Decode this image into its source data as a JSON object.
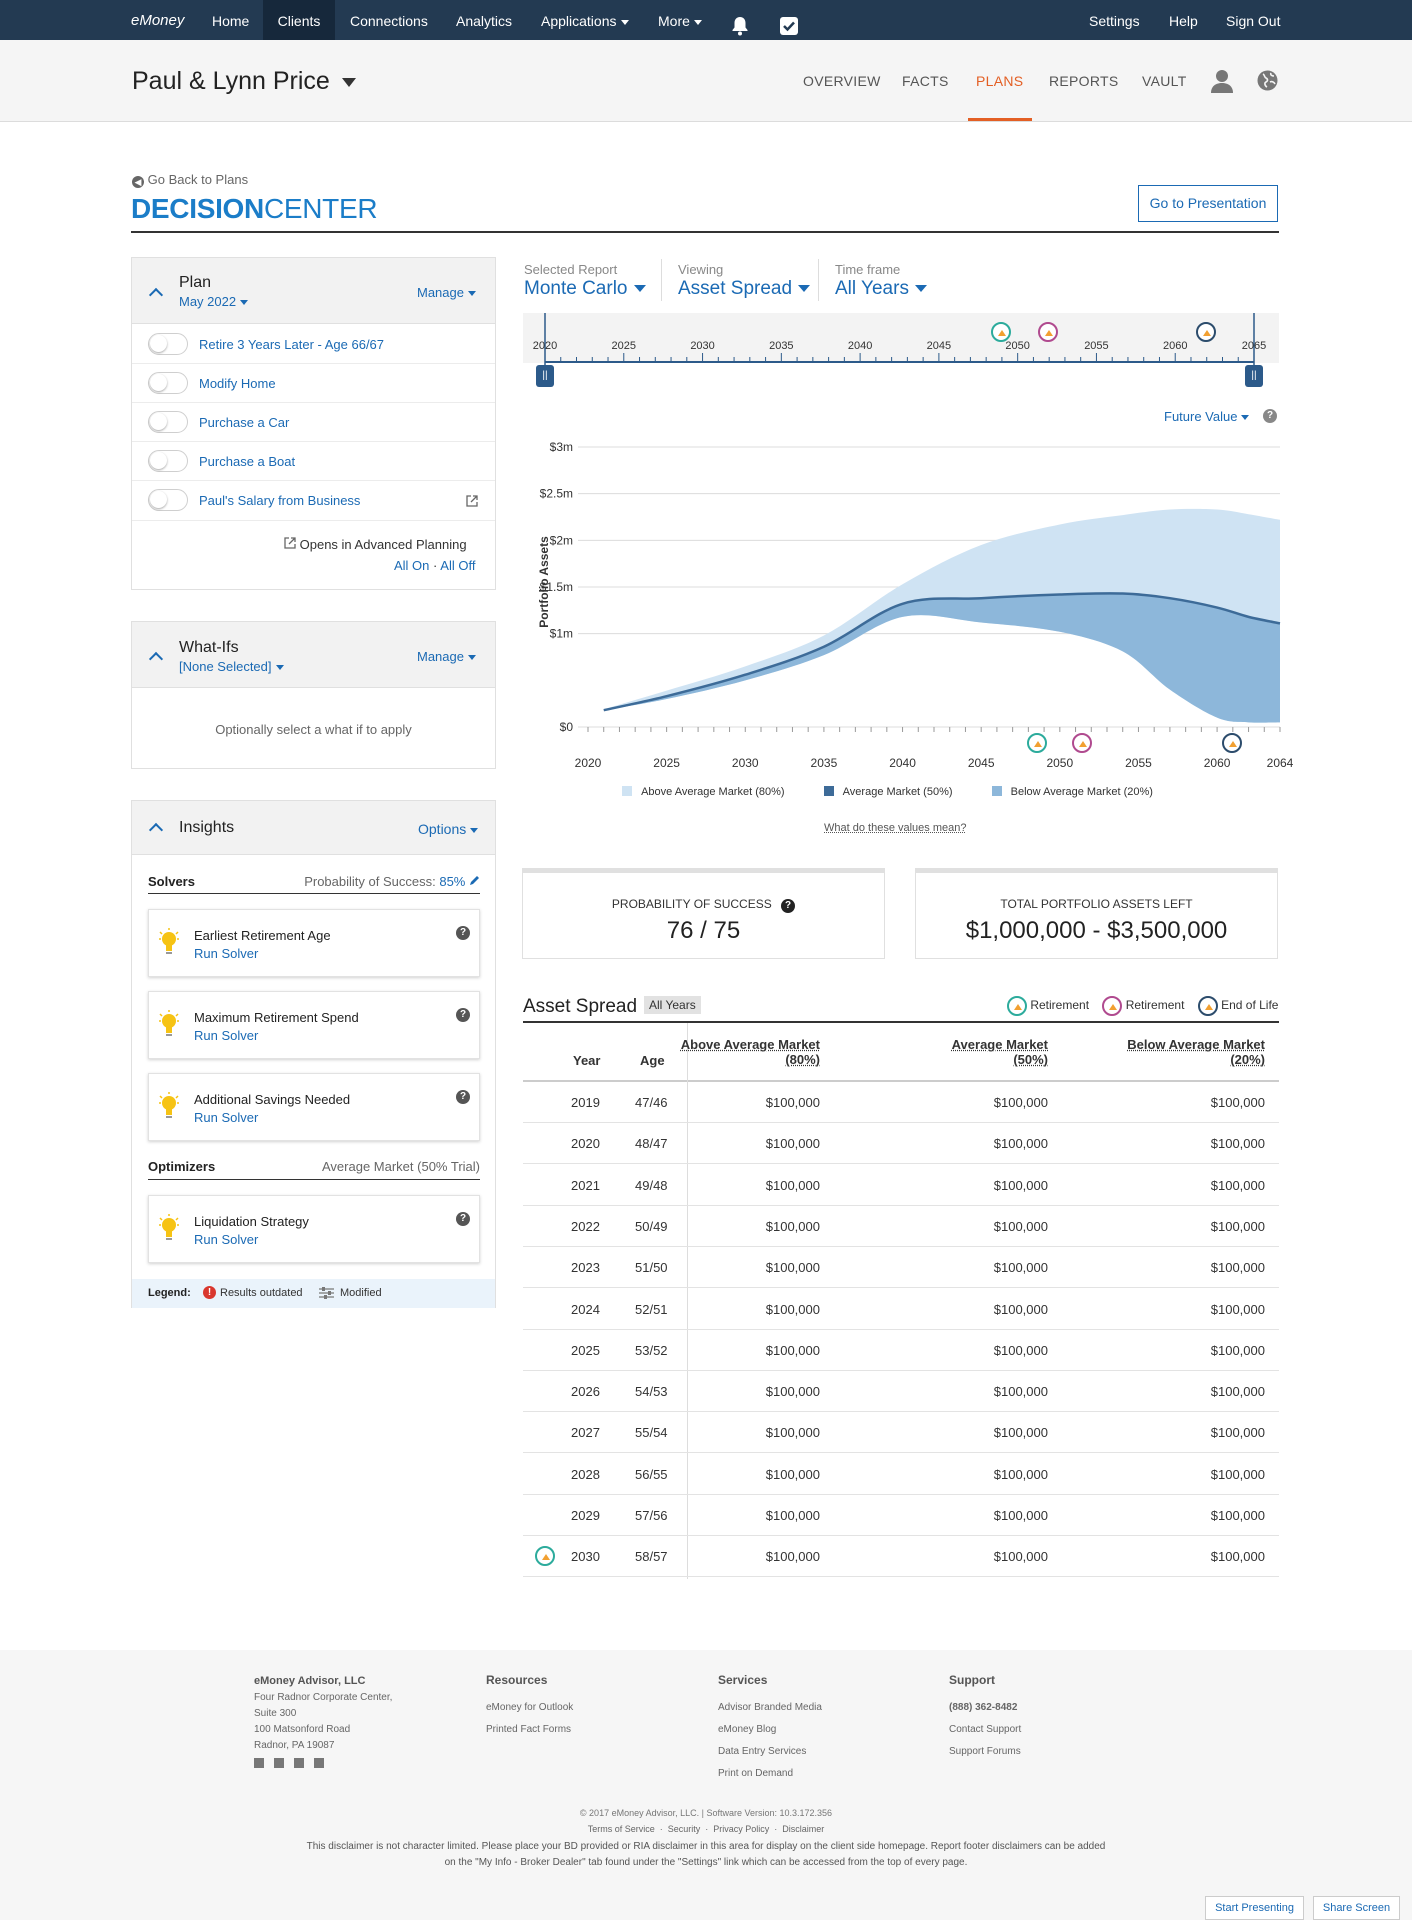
{
  "nav": {
    "logo": "eMoney",
    "items": [
      "Home",
      "Clients",
      "Connections",
      "Analytics",
      "Applications",
      "More"
    ],
    "right": [
      "Settings",
      "Help",
      "Sign Out"
    ]
  },
  "client": {
    "name": "Paul & Lynn Price",
    "tabs": [
      "OVERVIEW",
      "FACTS",
      "PLANS",
      "REPORTS",
      "VAULT"
    ],
    "active_tab": "PLANS"
  },
  "page": {
    "back_link": "Go Back to Plans",
    "title_bold": "DECISION",
    "title_light": "CENTER",
    "presentation_button": "Go to Presentation"
  },
  "plan_panel": {
    "title": "Plan",
    "subtitle": "May 2022",
    "manage": "Manage",
    "items": [
      "Retire 3 Years Later - Age 66/67",
      "Modify Home",
      "Purchase a Car",
      "Purchase a Boat",
      "Paul's Salary from Business"
    ],
    "note": "Opens in Advanced Planning",
    "all_on": "All On",
    "sep": "·",
    "all_off": "All Off"
  },
  "whatifs_panel": {
    "title": "What-Ifs",
    "subtitle": "[None Selected]",
    "manage": "Manage",
    "empty": "Optionally select a what if to apply"
  },
  "insights_panel": {
    "title": "Insights",
    "options": "Options",
    "solvers_label": "Solvers",
    "probability_label": "Probability of Success:",
    "probability_value": "85%",
    "solvers": [
      {
        "title": "Earliest Retirement Age",
        "action": "Run Solver"
      },
      {
        "title": "Maximum Retirement Spend",
        "action": "Run Solver"
      },
      {
        "title": "Additional Savings Needed",
        "action": "Run Solver"
      }
    ],
    "optimizers_label": "Optimizers",
    "optimizers_note": "Average Market (50% Trial)",
    "optimizers": [
      {
        "title": "Liquidation Strategy",
        "action": "Run Solver"
      }
    ],
    "legend_label": "Legend:",
    "legend_outdated": "Results outdated",
    "legend_modified": "Modified"
  },
  "selectors": {
    "report_label": "Selected Report",
    "report_value": "Monte Carlo",
    "viewing_label": "Viewing",
    "viewing_value": "Asset Spread",
    "timeframe_label": "Time frame",
    "timeframe_value": "All Years"
  },
  "timeline": {
    "ticks": [
      "2020",
      "2025",
      "2030",
      "2035",
      "2040",
      "2045",
      "2050",
      "2055",
      "2060",
      "2065"
    ]
  },
  "future_value": "Future Value",
  "chart_data": {
    "type": "area",
    "ylabel": "Portfolio Assets",
    "yticks": [
      "$0",
      "$1m",
      "$1.5m",
      "$2m",
      "$2.5m",
      "$3m"
    ],
    "xticks": [
      "2020",
      "2025",
      "2030",
      "2035",
      "2040",
      "2045",
      "2050",
      "2055",
      "2060",
      "2064"
    ],
    "x": [
      2021,
      2025,
      2030,
      2035,
      2040,
      2045,
      2050,
      2054,
      2057,
      2060,
      2062,
      2064
    ],
    "series": [
      {
        "name": "Above Average Market (80%)",
        "color": "#cfe3f3",
        "values": [
          0.19,
          0.39,
          0.65,
          0.98,
          1.53,
          1.95,
          2.17,
          2.27,
          2.33,
          2.33,
          2.28,
          2.22
        ]
      },
      {
        "name": "Average Market (50%)",
        "color": "#3d6b98",
        "values": [
          0.18,
          0.33,
          0.56,
          0.86,
          1.32,
          1.38,
          1.42,
          1.43,
          1.38,
          1.28,
          1.18,
          1.11
        ]
      },
      {
        "name": "Below Average Market (20%)",
        "color": "#8db7da",
        "values": [
          0.18,
          0.3,
          0.5,
          0.77,
          1.18,
          1.12,
          1.02,
          0.81,
          0.4,
          0.1,
          0.05,
          0.05
        ]
      }
    ],
    "ylim": [
      0,
      3
    ],
    "xlim": [
      2020,
      2064
    ]
  },
  "values_link": "What do these values mean?",
  "stats": {
    "prob_label": "PROBABILITY OF SUCCESS",
    "prob_value": "76 / 75",
    "assets_label": "TOTAL PORTFOLIO ASSETS LEFT",
    "assets_value": "$1,000,000 - $3,500,000"
  },
  "table": {
    "title": "Asset Spread",
    "badge": "All Years",
    "legend": [
      "Retirement",
      "Retirement",
      "End of Life"
    ],
    "headers": [
      "Year",
      "Age",
      "Above Average Market",
      "(80%)",
      "Average Market",
      "(50%)",
      "Below Average Market",
      "(20%)"
    ],
    "rows": [
      [
        "2019",
        "47/46",
        "$100,000",
        "$100,000",
        "$100,000"
      ],
      [
        "2020",
        "48/47",
        "$100,000",
        "$100,000",
        "$100,000"
      ],
      [
        "2021",
        "49/48",
        "$100,000",
        "$100,000",
        "$100,000"
      ],
      [
        "2022",
        "50/49",
        "$100,000",
        "$100,000",
        "$100,000"
      ],
      [
        "2023",
        "51/50",
        "$100,000",
        "$100,000",
        "$100,000"
      ],
      [
        "2024",
        "52/51",
        "$100,000",
        "$100,000",
        "$100,000"
      ],
      [
        "2025",
        "53/52",
        "$100,000",
        "$100,000",
        "$100,000"
      ],
      [
        "2026",
        "54/53",
        "$100,000",
        "$100,000",
        "$100,000"
      ],
      [
        "2027",
        "55/54",
        "$100,000",
        "$100,000",
        "$100,000"
      ],
      [
        "2028",
        "56/55",
        "$100,000",
        "$100,000",
        "$100,000"
      ],
      [
        "2029",
        "57/56",
        "$100,000",
        "$100,000",
        "$100,000"
      ],
      [
        "2030",
        "58/57",
        "$100,000",
        "$100,000",
        "$100,000"
      ]
    ]
  },
  "footer": {
    "company": "eMoney Advisor, LLC",
    "address": [
      "Four Radnor Corporate Center,",
      "Suite 300",
      "100 Matsonford Road",
      "Radnor, PA 19087"
    ],
    "resources_title": "Resources",
    "resources": [
      "eMoney for Outlook",
      "Printed Fact Forms"
    ],
    "services_title": "Services",
    "services": [
      "Advisor Branded Media",
      "eMoney Blog",
      "Data Entry Services",
      "Print on Demand"
    ],
    "support_title": "Support",
    "support": [
      "(888) 362-8482",
      "Contact Support",
      "Support Forums"
    ],
    "copyright": "© 2017 eMoney Advisor, LLC.",
    "version": "Software Version: 10.3.172.356",
    "legal_links": [
      "Terms of Service",
      "Security",
      "Privacy Policy",
      "Disclaimer"
    ],
    "disclaimer1": "This disclaimer is not character limited.  Please place your BD provided or RIA disclaimer in this area for display on the client side homepage.  Report footer disclaimers can be added",
    "disclaimer2": "on the \"My Info - Broker Dealer\" tab found under the \"Settings\" link which can be accessed from the top of every page.",
    "start_presenting": "Start Presenting",
    "share_screen": "Share Screen"
  }
}
